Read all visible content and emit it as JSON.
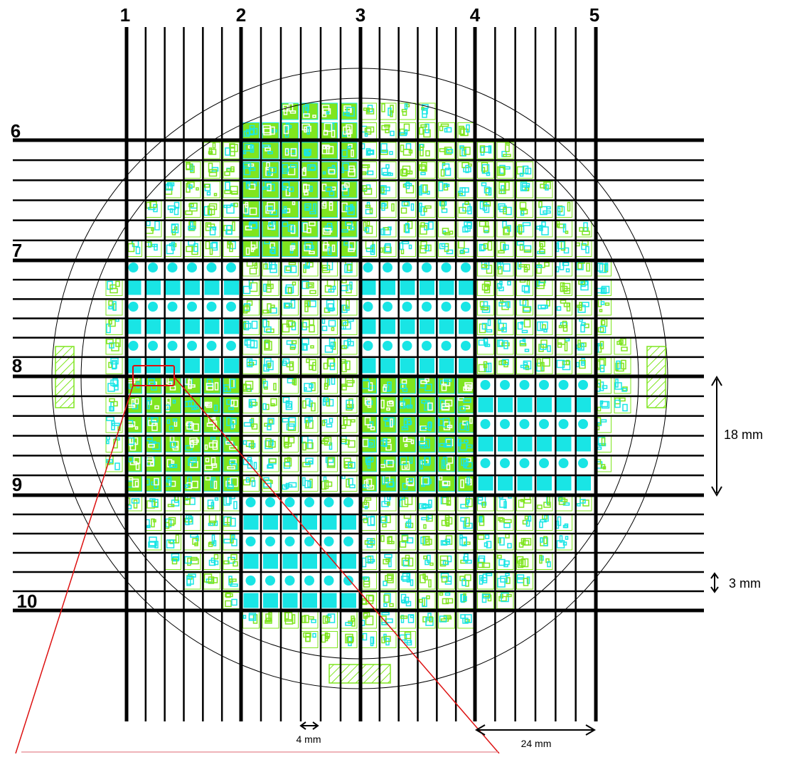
{
  "diagram": {
    "column_labels": [
      "1",
      "2",
      "3",
      "4",
      "5"
    ],
    "row_labels": [
      "6",
      "7",
      "8",
      "9",
      "10"
    ],
    "dimensions": {
      "pitch_vertical": "18 mm",
      "pitch_fine_vertical": "3 mm",
      "pitch_fine_horizontal": "4 mm",
      "pitch_horizontal": "24 mm"
    },
    "colors": {
      "lines": "#000000",
      "wafer_outline": "#000000",
      "die_green": "#7fe51f",
      "die_cyan": "#19e5e5",
      "highlight": "#dd1111"
    }
  }
}
